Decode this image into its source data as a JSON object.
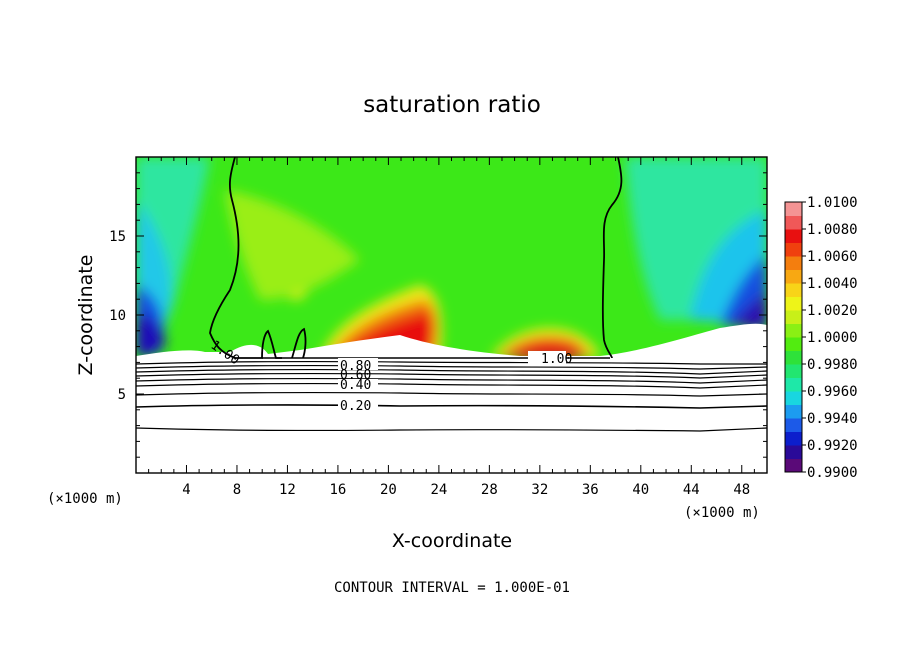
{
  "chart_data": {
    "type": "heatmap",
    "title": "saturation ratio",
    "xlabel": "X-coordinate",
    "ylabel": "Z-coordinate",
    "x_unit": "(×1000 m)",
    "xlim": [
      0,
      50
    ],
    "ylim": [
      0,
      20
    ],
    "x_ticks": [
      4,
      8,
      12,
      16,
      20,
      24,
      28,
      32,
      36,
      40,
      44,
      48
    ],
    "y_ticks": [
      5,
      10,
      15
    ],
    "colorbar": {
      "min": 0.99,
      "max": 1.01,
      "step": 0.001,
      "labels": [
        "1.0100",
        "1.0080",
        "1.0060",
        "1.0040",
        "1.0020",
        "1.0000",
        "0.9980",
        "0.9960",
        "0.9940",
        "0.9920",
        "0.9900"
      ],
      "colors": [
        "#5a0a78",
        "#2a0a98",
        "#0c1ecc",
        "#1c5ae8",
        "#1c9cf0",
        "#19d6e0",
        "#1ee8a8",
        "#22e670",
        "#2ee23a",
        "#52ec10",
        "#8af014",
        "#c8f018",
        "#eef418",
        "#f8d418",
        "#f8a812",
        "#f47e0e",
        "#f0400e",
        "#e81010",
        "#f05858",
        "#f49494"
      ]
    },
    "contour_labels": [
      "1.00",
      "1.00",
      "0.80",
      "0.60",
      "0.40",
      "0.20"
    ],
    "contour_interval_text": "CONTOUR INTERVAL = 1.000E-01"
  }
}
